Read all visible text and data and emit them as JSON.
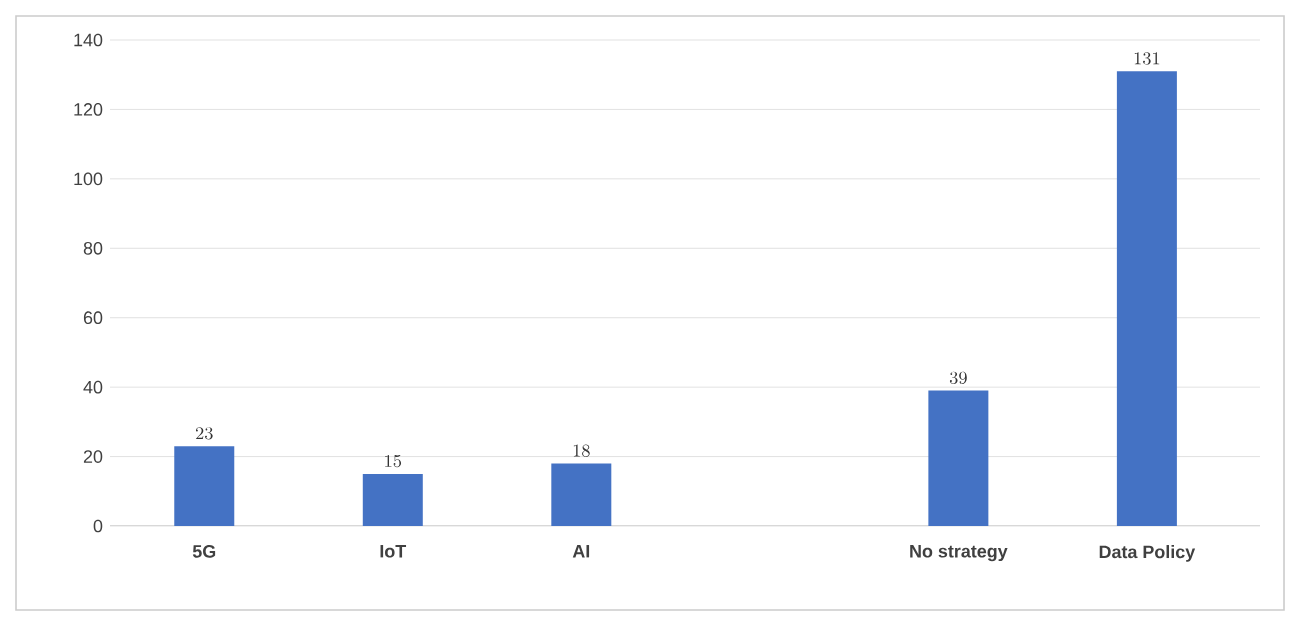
{
  "chart_data": {
    "type": "bar",
    "categories": [
      "5G",
      "IoT",
      "AI",
      null,
      "No strategy",
      "Data Policy"
    ],
    "values": [
      23,
      15,
      18,
      null,
      39,
      131
    ],
    "color": "#4472c4",
    "ylim": [
      0,
      140
    ],
    "yticks": [
      0,
      20,
      40,
      60,
      80,
      100,
      120,
      140
    ],
    "grid": "y",
    "data_labels": true
  }
}
